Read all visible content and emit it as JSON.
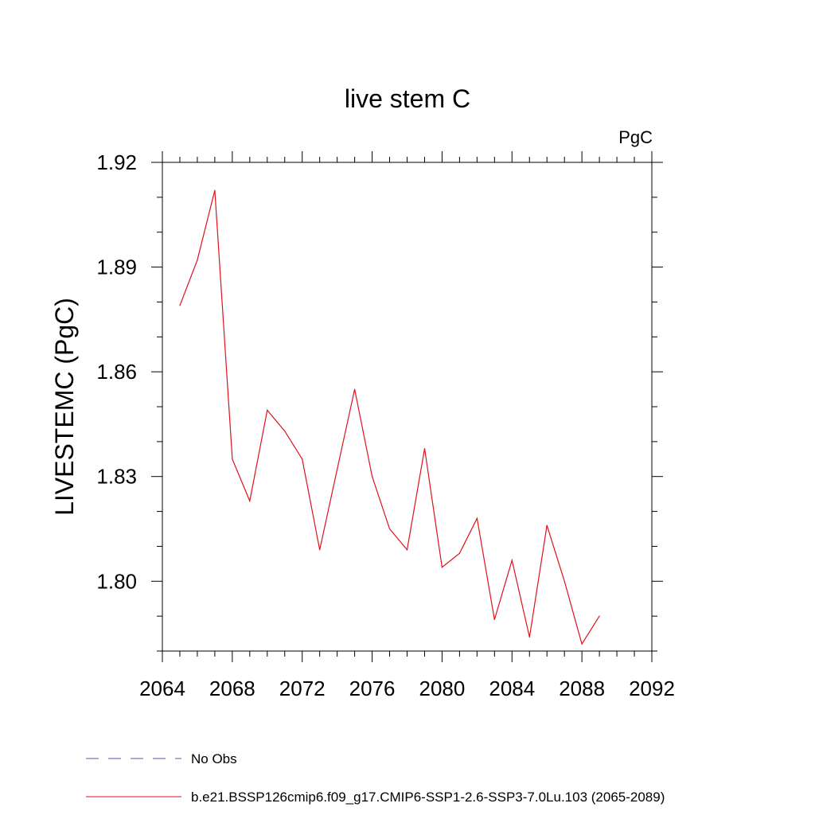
{
  "chart_data": {
    "type": "line",
    "title": "live stem C",
    "units_label": "PgC",
    "ylabel": "LIVESTEMC  (PgC)",
    "xlabel": "",
    "xlim": [
      2064,
      2092
    ],
    "ylim": [
      1.78,
      1.92
    ],
    "x_ticks": [
      2064,
      2068,
      2072,
      2076,
      2080,
      2084,
      2088,
      2092
    ],
    "x_tick_labels": [
      "2064",
      "2068",
      "2072",
      "2076",
      "2080",
      "2084",
      "2088",
      "2092"
    ],
    "y_ticks": [
      1.8,
      1.83,
      1.86,
      1.89,
      1.92
    ],
    "y_tick_labels": [
      "1.80",
      "1.83",
      "1.86",
      "1.89",
      "1.92"
    ],
    "grid": false,
    "legend_placement": "bottom",
    "series": [
      {
        "name": "b.e21.BSSP126cmip6.f09_g17.CMIP6-SSP1-2.6-SSP3-7.0Lu.103 (2065-2089)",
        "color": "#e0111b",
        "style": "solid",
        "x": [
          2065,
          2066,
          2067,
          2068,
          2069,
          2070,
          2071,
          2072,
          2073,
          2074,
          2075,
          2076,
          2077,
          2078,
          2079,
          2080,
          2081,
          2082,
          2083,
          2084,
          2085,
          2086,
          2087,
          2088,
          2089
        ],
        "values": [
          1.879,
          1.892,
          1.912,
          1.835,
          1.823,
          1.849,
          1.843,
          1.835,
          1.809,
          1.832,
          1.855,
          1.83,
          1.815,
          1.809,
          1.838,
          1.804,
          1.808,
          1.818,
          1.789,
          1.806,
          1.784,
          1.816,
          1.8,
          1.782,
          1.79
        ]
      }
    ],
    "legend": [
      {
        "label": "No Obs",
        "color": "#5a4fb0",
        "style": "dashed"
      },
      {
        "label": "b.e21.BSSP126cmip6.f09_g17.CMIP6-SSP1-2.6-SSP3-7.0Lu.103 (2065-2089)",
        "color": "#e0111b",
        "style": "solid"
      }
    ]
  }
}
